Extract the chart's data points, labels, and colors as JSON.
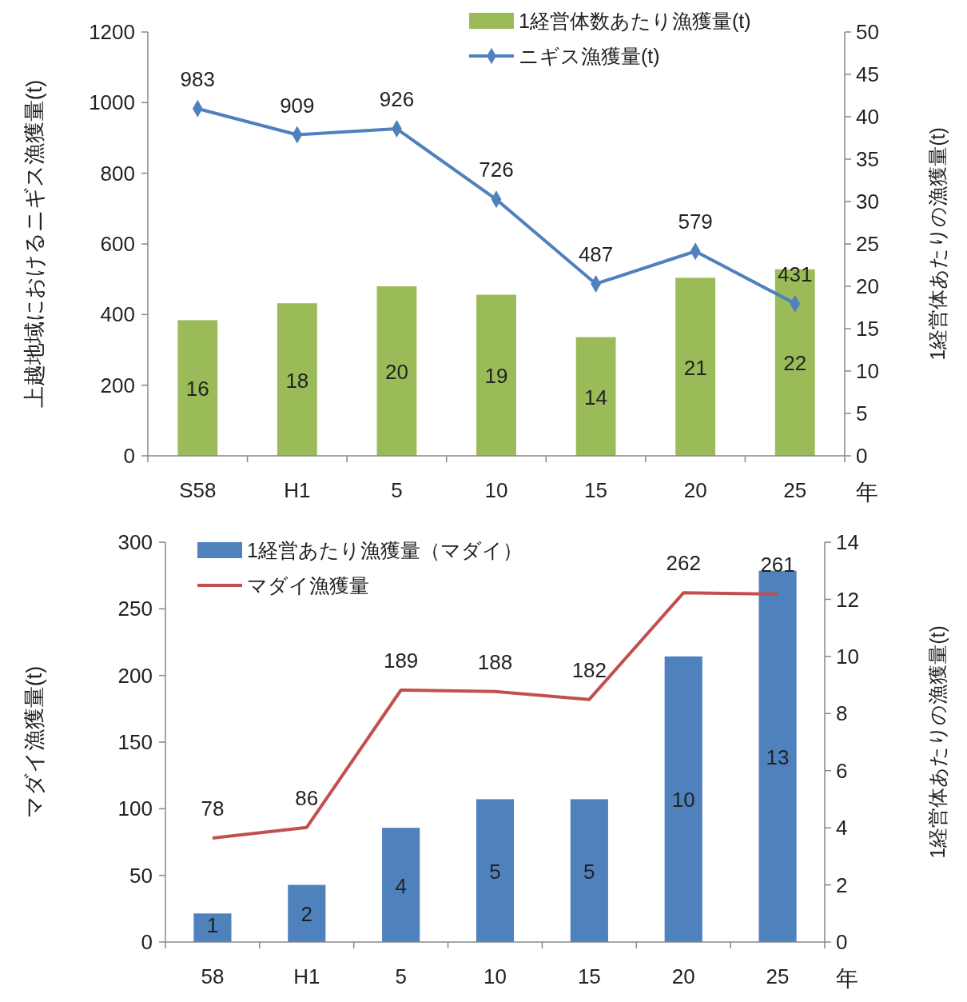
{
  "chart_data": [
    {
      "type": "bar",
      "categories": [
        "S58",
        "H1",
        "5",
        "10",
        "15",
        "20",
        "25"
      ],
      "xlabel": "年",
      "ylabel": "上越地域におけるニギス漁獲量(t)",
      "y2label": "1経営体あたりの漁獲量(t)",
      "ylim": [
        0,
        1200
      ],
      "yticks": [
        0,
        200,
        400,
        600,
        800,
        1000,
        1200
      ],
      "y2lim": [
        0,
        50
      ],
      "y2ticks": [
        0,
        5,
        10,
        15,
        20,
        25,
        30,
        35,
        40,
        45,
        50
      ],
      "legend": "top right",
      "data_labels": true,
      "grid": false,
      "series": [
        {
          "name": "1経営体数あたり漁獲量(t)",
          "axis": "y2",
          "color": "#9bbb59",
          "values": [
            16,
            18,
            20,
            19,
            14,
            21,
            22
          ]
        },
        {
          "name": "ニギス漁獲量(t)",
          "type": "line",
          "axis": "y",
          "color": "#4f81bd",
          "marker": "diamond",
          "values": [
            983,
            909,
            926,
            726,
            487,
            579,
            431
          ]
        }
      ]
    },
    {
      "type": "bar",
      "categories": [
        "58",
        "H1",
        "5",
        "10",
        "15",
        "20",
        "25"
      ],
      "xlabel": "年",
      "ylabel": "マダイ漁獲量(t)",
      "y2label": "1経営体あたりの漁獲量(t)",
      "ylim": [
        0,
        300
      ],
      "yticks": [
        0,
        50,
        100,
        150,
        200,
        250,
        300
      ],
      "y2lim": [
        0,
        14
      ],
      "y2ticks": [
        0,
        2,
        4,
        6,
        8,
        10,
        12,
        14
      ],
      "legend": "top left",
      "data_labels": true,
      "grid": false,
      "series": [
        {
          "name": "1経営あたり漁獲量（マダイ）",
          "axis": "y2",
          "color": "#4f81bd",
          "values": [
            1,
            2,
            4,
            5,
            5,
            10,
            13
          ]
        },
        {
          "name": "マダイ漁獲量",
          "type": "line",
          "axis": "y",
          "color": "#c0504d",
          "marker": "none",
          "values": [
            78,
            86,
            189,
            188,
            182,
            262,
            261
          ]
        }
      ]
    }
  ]
}
